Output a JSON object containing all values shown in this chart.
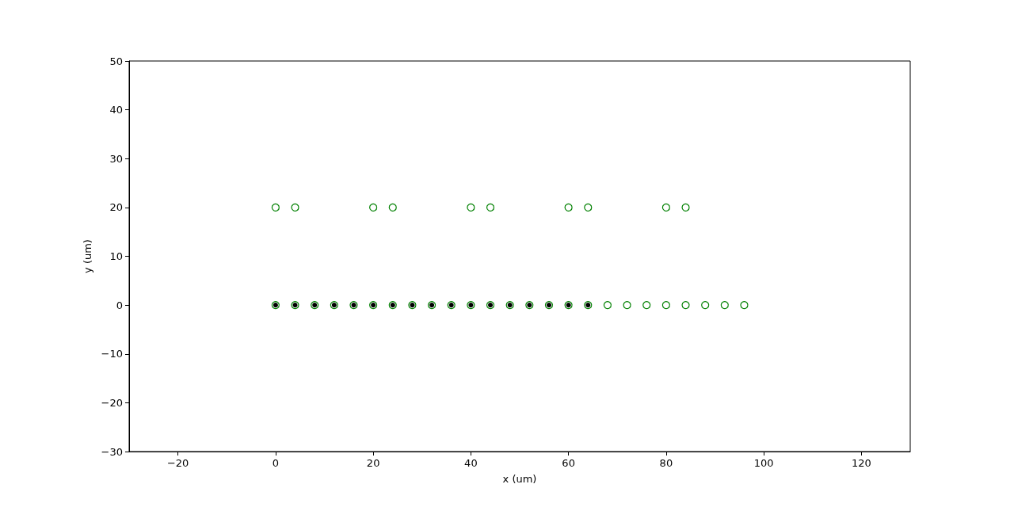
{
  "chart_data": {
    "type": "scatter",
    "xlabel": "x (um)",
    "ylabel": "y (um)",
    "xlim": [
      -30,
      130
    ],
    "xticks": [
      -20,
      0,
      20,
      40,
      60,
      80,
      100,
      120
    ],
    "ylim": [
      -30,
      50
    ],
    "yticks": [
      -30,
      -20,
      -10,
      0,
      10,
      20,
      30,
      40,
      50
    ],
    "grid": false,
    "marker": "circle",
    "series": [
      {
        "color": "#008000",
        "x": [
          0,
          4,
          8,
          12,
          16,
          20,
          24,
          28,
          32,
          36,
          40,
          44,
          48,
          52,
          56,
          60,
          64,
          68,
          72,
          76,
          80,
          84,
          88,
          92,
          96,
          0,
          4,
          20,
          24,
          40,
          44,
          60,
          64,
          80,
          84
        ],
        "values": [
          0,
          0,
          0,
          0,
          0,
          0,
          0,
          0,
          0,
          0,
          0,
          0,
          0,
          0,
          0,
          0,
          0,
          0,
          0,
          0,
          0,
          0,
          0,
          0,
          0,
          20,
          20,
          20,
          20,
          20,
          20,
          20,
          20,
          20,
          20
        ]
      },
      {
        "color": "#000000",
        "x": [
          0,
          4,
          8,
          12,
          16,
          20,
          24,
          28,
          32,
          36,
          40,
          44,
          48,
          52,
          56,
          60,
          64
        ],
        "values": [
          0,
          0,
          0,
          0,
          0,
          0,
          0,
          0,
          0,
          0,
          0,
          0,
          0,
          0,
          0,
          0,
          0
        ]
      }
    ]
  }
}
